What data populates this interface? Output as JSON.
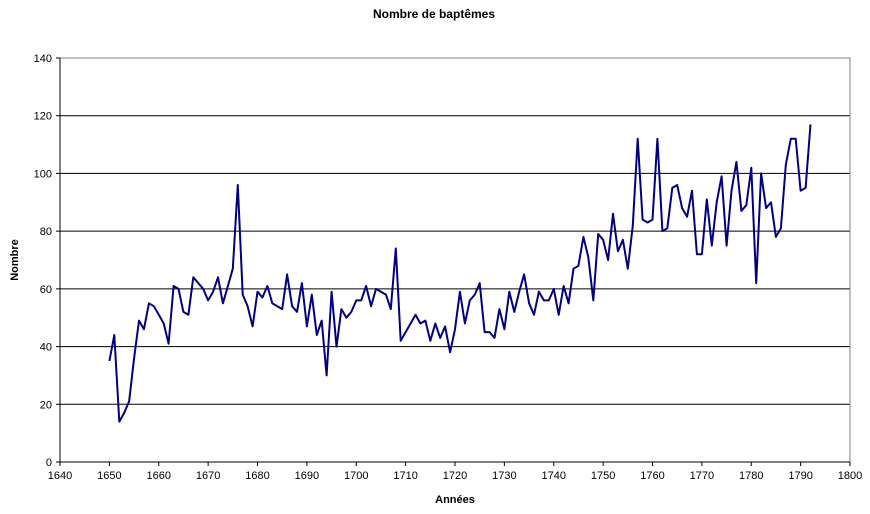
{
  "chart_data": {
    "type": "line",
    "title": "Nombre de baptêmes",
    "xlabel": "Années",
    "ylabel": "Nombre",
    "xlim": [
      1640,
      1800
    ],
    "ylim": [
      0,
      140
    ],
    "x_ticks": [
      1640,
      1650,
      1660,
      1670,
      1680,
      1690,
      1700,
      1710,
      1720,
      1730,
      1740,
      1750,
      1760,
      1770,
      1780,
      1790,
      1800
    ],
    "y_ticks": [
      0,
      20,
      40,
      60,
      80,
      100,
      120,
      140
    ],
    "grid": "horizontal",
    "legend": "none",
    "line_color": "#000080",
    "series": [
      {
        "x": [
          1650,
          1651,
          1652,
          1653,
          1654,
          1655,
          1656,
          1657,
          1658,
          1659,
          1660,
          1661,
          1662,
          1663,
          1664,
          1665,
          1666,
          1667,
          1668,
          1669,
          1670,
          1671,
          1672,
          1673,
          1674,
          1675,
          1676,
          1677,
          1678,
          1679,
          1680,
          1681,
          1682,
          1683,
          1684,
          1685,
          1686,
          1687,
          1688,
          1689,
          1690,
          1691,
          1692,
          1693,
          1694,
          1695,
          1696,
          1697,
          1698,
          1699,
          1700,
          1701,
          1702,
          1703,
          1704,
          1705,
          1706,
          1707,
          1708,
          1709,
          1710,
          1711,
          1712,
          1713,
          1714,
          1715,
          1716,
          1717,
          1718,
          1719,
          1720,
          1721,
          1722,
          1723,
          1724,
          1725,
          1726,
          1727,
          1728,
          1729,
          1730,
          1731,
          1732,
          1733,
          1734,
          1735,
          1736,
          1737,
          1738,
          1739,
          1740,
          1741,
          1742,
          1743,
          1744,
          1745,
          1746,
          1747,
          1748,
          1749,
          1750,
          1751,
          1752,
          1753,
          1754,
          1755,
          1756,
          1757,
          1758,
          1759,
          1760,
          1761,
          1762,
          1763,
          1764,
          1765,
          1766,
          1767,
          1768,
          1769,
          1770,
          1771,
          1772,
          1773,
          1774,
          1775,
          1776,
          1777,
          1778,
          1779,
          1780,
          1781,
          1782,
          1783,
          1784,
          1785,
          1786,
          1787,
          1788,
          1789,
          1790,
          1791,
          1792
        ],
        "y": [
          35,
          44,
          14,
          17,
          21,
          36,
          49,
          46,
          55,
          54,
          51,
          48,
          41,
          61,
          60,
          52,
          51,
          64,
          62,
          60,
          56,
          59,
          64,
          55,
          61,
          67,
          96,
          58,
          54,
          47,
          59,
          57,
          61,
          55,
          54,
          53,
          65,
          54,
          52,
          62,
          47,
          58,
          44,
          49,
          30,
          59,
          40,
          53,
          50,
          52,
          56,
          56,
          61,
          54,
          60,
          59,
          58,
          53,
          74,
          42,
          45,
          48,
          51,
          48,
          49,
          42,
          48,
          43,
          47,
          38,
          46,
          59,
          48,
          56,
          58,
          62,
          45,
          45,
          43,
          53,
          46,
          59,
          52,
          59,
          65,
          55,
          51,
          59,
          56,
          56,
          60,
          51,
          61,
          55,
          67,
          68,
          78,
          71,
          56,
          79,
          77,
          70,
          86,
          73,
          77,
          67,
          82,
          112,
          84,
          83,
          84,
          112,
          80,
          81,
          95,
          96,
          88,
          85,
          94,
          72,
          72,
          91,
          75,
          90,
          99,
          75,
          94,
          104,
          87,
          89,
          102,
          62,
          100,
          88,
          90,
          78,
          81,
          103,
          112,
          112,
          94,
          95,
          117
        ]
      }
    ]
  }
}
